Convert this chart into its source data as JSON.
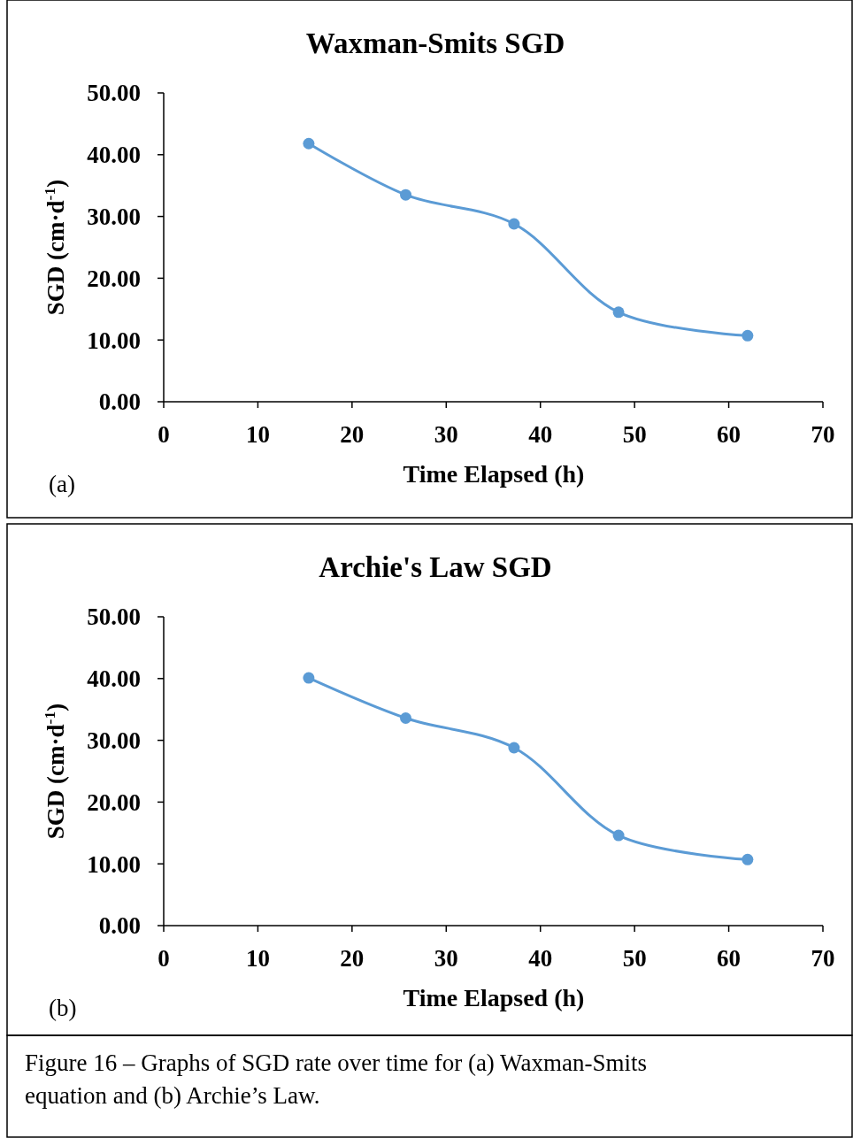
{
  "chart_data": [
    {
      "type": "line",
      "title": "Waxman-Smits SGD",
      "xlabel": "Time Elapsed (h)",
      "ylabel": "SGD (cm·d$^{-1}$)",
      "x": [
        15.4,
        25.7,
        37.2,
        48.3,
        62.0
      ],
      "series": [
        {
          "color": "#5b9bd5",
          "values": [
            41.8,
            33.5,
            28.8,
            14.5,
            10.7
          ]
        }
      ],
      "marker": "circle",
      "xlim": [
        0,
        70
      ],
      "xticks": [
        0,
        10,
        20,
        30,
        40,
        50,
        60,
        70
      ],
      "ylim": [
        0,
        50
      ],
      "yticks": [
        {
          "value": 0,
          "label": "0.00"
        },
        {
          "value": 10,
          "label": "10.00"
        },
        {
          "value": 20,
          "label": "20.00"
        },
        {
          "value": 30,
          "label": "30.00"
        },
        {
          "value": 40,
          "label": "40.00"
        },
        {
          "value": 50,
          "label": "50.00"
        }
      ],
      "annotations": [
        "(a)"
      ]
    },
    {
      "type": "line",
      "title": "Archie's Law SGD",
      "xlabel": "Time Elapsed (h)",
      "ylabel": "SGD (cm·d$^{-1}$)",
      "x": [
        15.4,
        25.7,
        37.2,
        48.3,
        62.0
      ],
      "series": [
        {
          "color": "#5b9bd5",
          "values": [
            40.1,
            33.6,
            28.8,
            14.6,
            10.7
          ]
        }
      ],
      "marker": "circle",
      "xlim": [
        0,
        70
      ],
      "xticks": [
        0,
        10,
        20,
        30,
        40,
        50,
        60,
        70
      ],
      "ylim": [
        0,
        50
      ],
      "yticks": [
        {
          "value": 0,
          "label": "0.00"
        },
        {
          "value": 10,
          "label": "10.00"
        },
        {
          "value": 20,
          "label": "20.00"
        },
        {
          "value": 30,
          "label": "30.00"
        },
        {
          "value": 40,
          "label": "40.00"
        },
        {
          "value": 50,
          "label": "50.00"
        }
      ],
      "annotations": [
        "(b)",
        "Figure 16 – Graphs of SGD rate over time for (a) Waxman-Smits equation and (b) Archie’s Law."
      ]
    }
  ]
}
